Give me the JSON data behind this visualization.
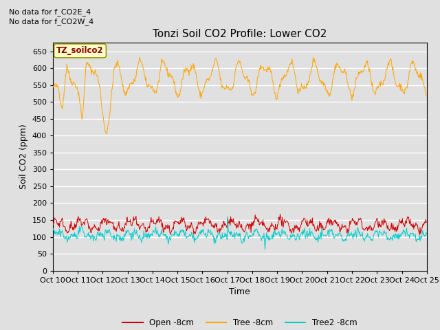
{
  "title": "Tonzi Soil CO2 Profile: Lower CO2",
  "ylabel": "Soil CO2 (ppm)",
  "xlabel": "Time",
  "top_text_1": "No data for f_CO2E_4",
  "top_text_2": "No data for f_CO2W_4",
  "legend_box_label": "TZ_soilco2",
  "xtick_labels": [
    "Oct 10",
    "Oct 11",
    "Oct 12",
    "Oct 13",
    "Oct 14",
    "Oct 15",
    "Oct 16",
    "Oct 17",
    "Oct 18",
    "Oct 19",
    "Oct 20",
    "Oct 21",
    "Oct 22",
    "Oct 23",
    "Oct 24",
    "Oct 25"
  ],
  "ylim": [
    0,
    675
  ],
  "yticks": [
    0,
    50,
    100,
    150,
    200,
    250,
    300,
    350,
    400,
    450,
    500,
    550,
    600,
    650
  ],
  "background_color": "#e0e0e0",
  "plot_bg_color": "#e0e0e0",
  "grid_color": "#ffffff",
  "colors": {
    "open": "#cc0000",
    "tree": "#ffa500",
    "tree2": "#00cccc"
  },
  "legend_labels": [
    "Open -8cm",
    "Tree -8cm",
    "Tree2 -8cm"
  ],
  "n_days": 15,
  "n_per_day": 48,
  "seed": 42
}
